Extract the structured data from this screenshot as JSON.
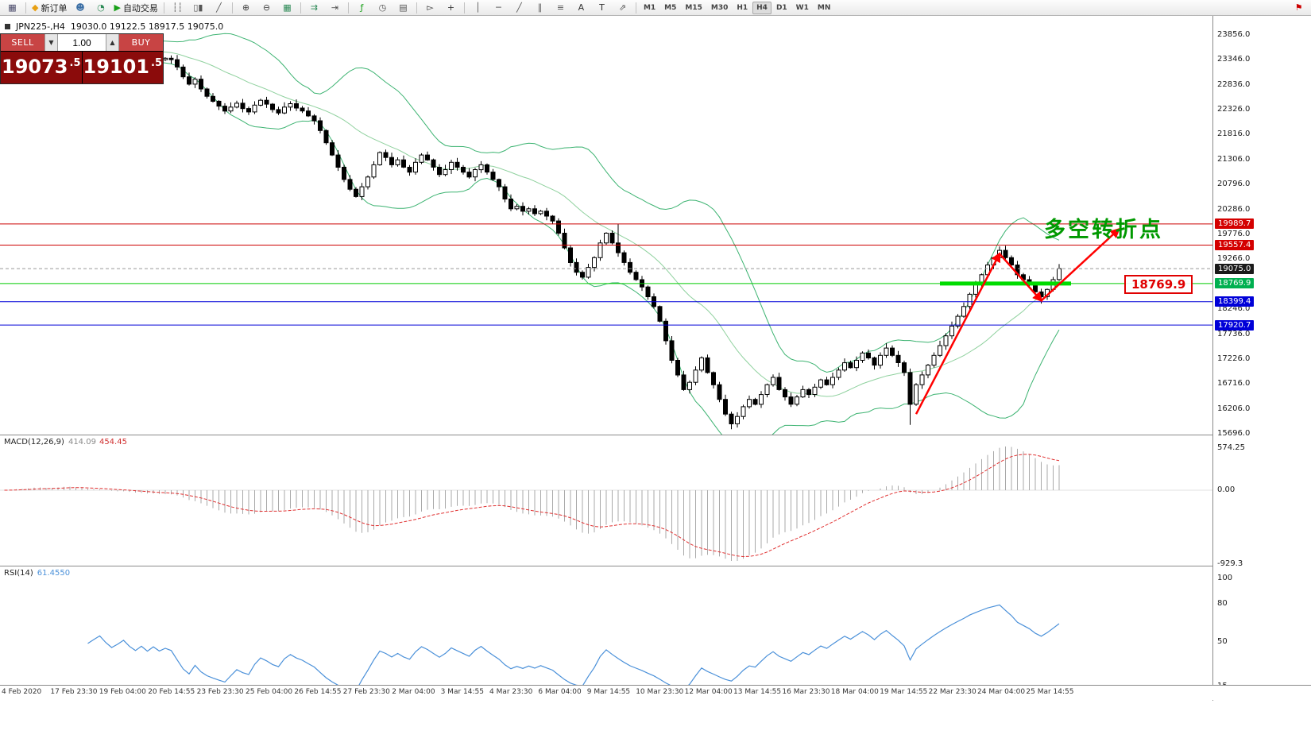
{
  "toolbar": {
    "groups": [
      {
        "items": [
          {
            "name": "chart-window-button",
            "icon": "chart-window-icon",
            "glyph": "▦",
            "glyph_color": "#4a4a6a"
          }
        ]
      },
      {
        "items": [
          {
            "name": "new-order-button",
            "icon": "new-order-icon",
            "glyph": "◆",
            "glyph_color": "#e8a013",
            "label": "新订单"
          },
          {
            "name": "profile-button",
            "icon": "profile-icon",
            "glyph": "☻",
            "glyph_color": "#3a6ea5"
          },
          {
            "name": "market-watch-button",
            "icon": "market-watch-icon",
            "glyph": "◔",
            "glyph_color": "#2e8b57"
          },
          {
            "name": "autotrading-button",
            "icon": "autotrading-play-icon",
            "glyph": "▶",
            "glyph_color": "#18a018",
            "label": "自动交易"
          }
        ]
      },
      {
        "items": [
          {
            "name": "bar-chart-button",
            "icon": "bar-chart-icon",
            "glyph": "┆┆",
            "glyph_color": "#555"
          },
          {
            "name": "candlestick-chart-button",
            "icon": "candlestick-icon",
            "glyph": "▯▮",
            "glyph_color": "#555"
          },
          {
            "name": "line-chart-button",
            "icon": "line-chart-icon",
            "glyph": "╱",
            "glyph_color": "#555"
          }
        ]
      },
      {
        "items": [
          {
            "name": "zoom-in-button",
            "icon": "zoom-in-icon",
            "glyph": "⊕",
            "glyph_color": "#444"
          },
          {
            "name": "zoom-out-button",
            "icon": "zoom-out-icon",
            "glyph": "⊖",
            "glyph_color": "#444"
          },
          {
            "name": "tile-windows-button",
            "icon": "tile-windows-icon",
            "glyph": "▦",
            "glyph_color": "#2e8b57"
          }
        ]
      },
      {
        "items": [
          {
            "name": "auto-scroll-button",
            "icon": "auto-scroll-icon",
            "glyph": "⇉",
            "glyph_color": "#2e8b57"
          },
          {
            "name": "chart-shift-button",
            "icon": "chart-shift-icon",
            "glyph": "⇥",
            "glyph_color": "#555"
          }
        ]
      },
      {
        "items": [
          {
            "name": "indicators-button",
            "icon": "indicators-icon",
            "glyph": "ƒ",
            "glyph_color": "#18a018"
          },
          {
            "name": "periods-button",
            "icon": "periods-icon",
            "glyph": "◷",
            "glyph_color": "#555"
          },
          {
            "name": "templates-button",
            "icon": "templates-icon",
            "glyph": "▤",
            "glyph_color": "#555"
          }
        ]
      },
      {
        "items": [
          {
            "name": "cursor-button",
            "icon": "cursor-icon",
            "glyph": "▻",
            "glyph_color": "#333"
          },
          {
            "name": "crosshair-button",
            "icon": "crosshair-icon",
            "glyph": "+",
            "glyph_color": "#333"
          }
        ]
      },
      {
        "items": [
          {
            "name": "vertical-line-button",
            "icon": "vertical-line-icon",
            "glyph": "│",
            "glyph_color": "#555"
          },
          {
            "name": "horizontal-line-button",
            "icon": "horizontal-line-icon",
            "glyph": "─",
            "glyph_color": "#555"
          },
          {
            "name": "trendline-button",
            "icon": "trendline-icon",
            "glyph": "╱",
            "glyph_color": "#555"
          },
          {
            "name": "channel-button",
            "icon": "channel-icon",
            "glyph": "∥",
            "glyph_color": "#555"
          },
          {
            "name": "fibonacci-button",
            "icon": "fibonacci-icon",
            "glyph": "≡",
            "glyph_color": "#555"
          },
          {
            "name": "text-button",
            "icon": "text-icon",
            "glyph": "A",
            "glyph_color": "#333"
          },
          {
            "name": "text-label-button",
            "icon": "text-label-icon",
            "glyph": "T",
            "glyph_color": "#333"
          },
          {
            "name": "arrows-button",
            "icon": "arrows-icon",
            "glyph": "⇗",
            "glyph_color": "#555"
          }
        ]
      }
    ],
    "timeframes": [
      {
        "label": "M1"
      },
      {
        "label": "M5"
      },
      {
        "label": "M15"
      },
      {
        "label": "M30"
      },
      {
        "label": "H1"
      },
      {
        "label": "H4",
        "active": true
      },
      {
        "label": "D1"
      },
      {
        "label": "W1"
      },
      {
        "label": "MN"
      }
    ],
    "right_icon": {
      "name": "alert-flag-button",
      "icon": "red-flag-icon",
      "glyph": "⚑",
      "glyph_color": "#cc0000"
    }
  },
  "chart_header": {
    "symbol_period": "JPN225-,H4",
    "ohlc": "19030.0 19122.5 18917.5 19075.0"
  },
  "trade_panel": {
    "sell_label": "SELL",
    "buy_label": "BUY",
    "volume": "1.00",
    "sell_price_main": "19073",
    "sell_price_sup": ".5",
    "buy_price_main": "19101",
    "buy_price_sup": ".5"
  },
  "annotations": {
    "turning_point_text": "多空转折点",
    "price_callout": "18769.9"
  },
  "indicators": {
    "macd": {
      "label": "MACD(12,26,9)",
      "value_main": "414.09",
      "value_signal": "454.45",
      "axis_ticks": [
        "574.25",
        "0.00",
        "-929.3"
      ]
    },
    "rsi": {
      "label": "RSI(14)",
      "value": "61.4550",
      "axis_ticks": [
        "100",
        "80",
        "50",
        "15"
      ]
    }
  },
  "price_axis": {
    "ticks": [
      "23856.0",
      "23346.0",
      "22836.0",
      "22326.0",
      "21816.0",
      "21306.0",
      "20796.0",
      "20286.0",
      "19776.0",
      "19266.0",
      "18246.0",
      "17736.0",
      "17226.0",
      "16716.0",
      "16206.0",
      "15696.0"
    ],
    "badges": [
      {
        "text": "19989.7",
        "bg": "#d40000"
      },
      {
        "text": "19557.4",
        "bg": "#d40000"
      },
      {
        "text": "19075.0",
        "bg": "#1a1a1a"
      },
      {
        "text": "18769.9",
        "bg": "#00b050"
      },
      {
        "text": "18399.4",
        "bg": "#0000d8"
      },
      {
        "text": "17920.7",
        "bg": "#0000d8"
      }
    ]
  },
  "time_axis": {
    "labels": [
      "4 Feb 2020",
      "17 Feb 23:30",
      "19 Feb 04:00",
      "20 Feb 14:55",
      "23 Feb 23:30",
      "25 Feb 04:00",
      "26 Feb 14:55",
      "27 Feb 23:30",
      "2 Mar 04:00",
      "3 Mar 14:55",
      "4 Mar 23:30",
      "6 Mar 04:00",
      "9 Mar 14:55",
      "10 Mar 23:30",
      "12 Mar 04:00",
      "13 Mar 14:55",
      "16 Mar 23:30",
      "18 Mar 04:00",
      "19 Mar 14:55",
      "22 Mar 23:30",
      "24 Mar 04:00",
      "25 Mar 14:55"
    ]
  },
  "chart_data": {
    "type": "candlestick",
    "symbol": "JPN225",
    "period": "H4",
    "price_range": [
      15680,
      24246
    ],
    "current_price": 19075.0,
    "levels": [
      {
        "name": "resistance-1",
        "price": 19989.7,
        "color": "#cc0000"
      },
      {
        "name": "resistance-2",
        "price": 19557.4,
        "color": "#cc0000"
      },
      {
        "name": "pivot-green",
        "price": 18769.9,
        "color": "#00cc00"
      },
      {
        "name": "support-1",
        "price": 18399.4,
        "color": "#0000d8"
      },
      {
        "name": "support-2",
        "price": 17920.7,
        "color": "#0000d8"
      }
    ],
    "highlight_segment": {
      "price": 18769.9,
      "from_idx": 157,
      "to_idx": 179,
      "color": "#00dc00"
    },
    "arrows": [
      {
        "from": [
          153,
          16100
        ],
        "to": [
          167,
          19380
        ]
      },
      {
        "from": [
          167,
          19380
        ],
        "to": [
          174,
          18420
        ]
      },
      {
        "from": [
          174,
          18420
        ],
        "to": [
          187,
          19880
        ]
      }
    ],
    "bollinger": {
      "period": 20,
      "deviation": 2
    },
    "macd_params": [
      12,
      26,
      9
    ],
    "macd_axis": {
      "max": 574.25,
      "min": -929.3
    },
    "rsi_period": 14,
    "special_wicks": {
      "103": {
        "high": 19985
      },
      "122": {
        "low": 15790
      },
      "152": {
        "low": 15880
      },
      "167": {
        "high": 19530
      },
      "174": {
        "low": 18360
      }
    },
    "closes": [
      23500,
      23560,
      23620,
      23580,
      23660,
      23700,
      23640,
      23560,
      23610,
      23680,
      23740,
      23690,
      23610,
      23540,
      23480,
      23530,
      23580,
      23500,
      23430,
      23470,
      23520,
      23440,
      23380,
      23430,
      23360,
      23410,
      23350,
      23380,
      23350,
      23200,
      23000,
      22850,
      22950,
      22750,
      22600,
      22500,
      22400,
      22300,
      22380,
      22460,
      22350,
      22280,
      22420,
      22520,
      22440,
      22330,
      22260,
      22380,
      22450,
      22360,
      22300,
      22200,
      22100,
      21900,
      21650,
      21400,
      21150,
      20900,
      20700,
      20550,
      20750,
      20950,
      21200,
      21450,
      21350,
      21200,
      21300,
      21150,
      21050,
      21250,
      21400,
      21300,
      21150,
      21000,
      21100,
      21250,
      21150,
      21050,
      20950,
      21100,
      21200,
      21050,
      20900,
      20750,
      20500,
      20300,
      20350,
      20250,
      20300,
      20200,
      20250,
      20150,
      20050,
      19800,
      19500,
      19200,
      19000,
      18900,
      19100,
      19300,
      19600,
      19800,
      19600,
      19400,
      19200,
      19000,
      18850,
      18700,
      18500,
      18300,
      18000,
      17600,
      17200,
      16900,
      16600,
      16750,
      17000,
      17250,
      16950,
      16700,
      16400,
      16100,
      15900,
      16050,
      16250,
      16400,
      16300,
      16500,
      16700,
      16850,
      16600,
      16450,
      16300,
      16450,
      16600,
      16500,
      16650,
      16800,
      16700,
      16850,
      17000,
      17150,
      17050,
      17200,
      17350,
      17250,
      17100,
      17300,
      17450,
      17300,
      17150,
      16950,
      16300,
      16700,
      16900,
      17100,
      17300,
      17500,
      17700,
      17900,
      18100,
      18300,
      18550,
      18750,
      18950,
      19150,
      19300,
      19450,
      19300,
      19150,
      18950,
      18850,
      18750,
      18600,
      18500,
      18650,
      18850,
      19075
    ]
  }
}
